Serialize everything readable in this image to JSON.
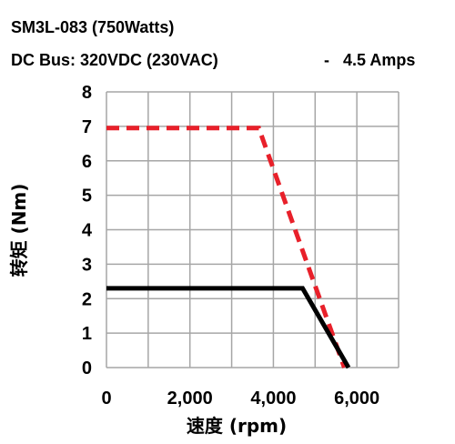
{
  "header": {
    "title_line1": "SM3L-083 (750Watts)",
    "title_line2_left": "DC Bus: 320VDC (230VAC)",
    "title_line2_right": "-   4.5 Amps"
  },
  "chart_data": {
    "type": "line",
    "title": "SM3L-083 (750Watts)",
    "subtitle": "DC Bus: 320VDC (230VAC)   -   4.5 Amps",
    "xlabel": "速度 (rpm)",
    "ylabel": "转矩 (Nm)",
    "xlim": [
      0,
      7000
    ],
    "ylim": [
      0,
      8
    ],
    "x_ticks": [
      0,
      2000,
      4000,
      6000
    ],
    "x_tick_labels": [
      "0",
      "2,000",
      "4,000",
      "6,000"
    ],
    "y_ticks": [
      0,
      1,
      2,
      3,
      4,
      5,
      6,
      7,
      8
    ],
    "y_tick_labels": [
      "0",
      "1",
      "2",
      "3",
      "4",
      "5",
      "6",
      "7",
      "8"
    ],
    "x_grid_step": 1000,
    "grid": true,
    "series": [
      {
        "style": "dashed",
        "color": "#e8202a",
        "points": [
          [
            0,
            6.95
          ],
          [
            3650,
            6.95
          ],
          [
            5700,
            0
          ]
        ]
      },
      {
        "style": "solid",
        "color": "#000000",
        "points": [
          [
            0,
            2.3
          ],
          [
            4700,
            2.3
          ],
          [
            5800,
            0
          ]
        ]
      }
    ]
  }
}
